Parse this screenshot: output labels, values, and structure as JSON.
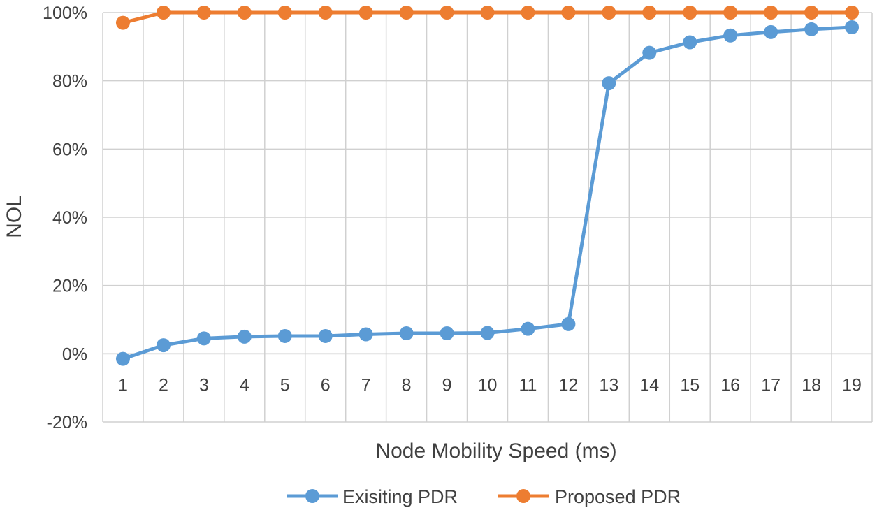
{
  "chart_data": {
    "type": "line",
    "title": "",
    "xlabel": "Node Mobility Speed (ms)",
    "ylabel": "NOL",
    "categories": [
      "1",
      "2",
      "3",
      "4",
      "5",
      "6",
      "7",
      "8",
      "9",
      "10",
      "11",
      "12",
      "13",
      "14",
      "15",
      "16",
      "17",
      "18",
      "19"
    ],
    "ylim": [
      -20,
      100
    ],
    "y_ticks": [
      -20,
      0,
      20,
      40,
      60,
      80,
      100
    ],
    "y_tick_labels": [
      "-20%",
      "0%",
      "20%",
      "40%",
      "60%",
      "80%",
      "100%"
    ],
    "grid": true,
    "legend_position": "bottom",
    "series": [
      {
        "name": "Exisiting PDR",
        "color": "#5b9bd5",
        "values": [
          -1.5,
          2.5,
          4.5,
          5.0,
          5.2,
          5.2,
          5.7,
          6.0,
          6.0,
          6.1,
          7.3,
          8.7,
          79.3,
          88.2,
          91.3,
          93.3,
          94.3,
          95.1,
          95.7
        ]
      },
      {
        "name": "Proposed PDR",
        "color": "#ed7d31",
        "values": [
          97,
          100,
          100,
          100,
          100,
          100,
          100,
          100,
          100,
          100,
          100,
          100,
          100,
          100,
          100,
          100,
          100,
          100,
          100
        ]
      }
    ]
  }
}
